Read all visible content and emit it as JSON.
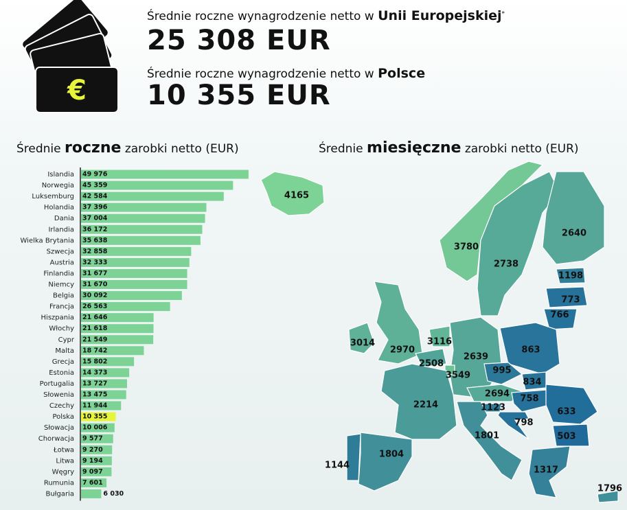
{
  "header": {
    "icon_symbol": "€",
    "eu_text": "Średnie roczne wynagrodzenie netto w",
    "eu_name": "Unii Europejskiej",
    "eu_note": "*",
    "eu_value": "25 308 EUR",
    "pl_text": "Średnie roczne wynagrodzenie netto w",
    "pl_name": "Polsce",
    "pl_value": "10 355 EUR"
  },
  "chart_data": {
    "type": "bar",
    "orientation": "horizontal",
    "title": [
      "Średnie",
      "roczne",
      "zarobki netto (EUR)"
    ],
    "categories": [
      "Islandia",
      "Norwegia",
      "Luksemburg",
      "Holandia",
      "Dania",
      "Irlandia",
      "Wielka Brytania",
      "Szwecja",
      "Austria",
      "Finlandia",
      "Niemcy",
      "Belgia",
      "Francja",
      "Hiszpania",
      "Włochy",
      "Cypr",
      "Malta",
      "Grecja",
      "Estonia",
      "Portugalia",
      "Słowenia",
      "Czechy",
      "Polska",
      "Słowacja",
      "Chorwacja",
      "Łotwa",
      "Litwa",
      "Węgry",
      "Rumunia",
      "Bułgaria"
    ],
    "values": [
      49976,
      45359,
      42584,
      37396,
      37004,
      36172,
      35638,
      32858,
      32333,
      31677,
      31670,
      30092,
      26563,
      21646,
      21618,
      21549,
      18742,
      15802,
      14373,
      13727,
      13475,
      11944,
      10355,
      10006,
      9577,
      9270,
      9194,
      9097,
      7601,
      6030
    ],
    "value_labels": [
      "49 976",
      "45 359",
      "42 584",
      "37 396",
      "37 004",
      "36 172",
      "35 638",
      "32 858",
      "32 333",
      "31 677",
      "31 670",
      "30 092",
      "26 563",
      "21 646",
      "21 618",
      "21 549",
      "18 742",
      "15 802",
      "14 373",
      "13 727",
      "13 475",
      "11 944",
      "10 355",
      "10 006",
      "9 577",
      "9 270",
      "9 194",
      "9 097",
      "7 601",
      "6 030"
    ],
    "colors": [
      "#7dd396",
      "#7dd396",
      "#7dd396",
      "#7dd396",
      "#7dd396",
      "#7dd396",
      "#7dd396",
      "#7dd396",
      "#7dd396",
      "#7dd396",
      "#7dd396",
      "#7dd396",
      "#7dd396",
      "#7dd396",
      "#7dd396",
      "#7dd396",
      "#7dd396",
      "#7dd396",
      "#7dd396",
      "#7dd396",
      "#7dd396",
      "#7dd396",
      "#e6f53a",
      "#7dd396",
      "#7dd396",
      "#7dd396",
      "#7dd396",
      "#7dd396",
      "#7dd396",
      "#7dd396"
    ],
    "xlim": [
      0,
      50000
    ]
  },
  "map": {
    "title": [
      "Średnie",
      "miesięczne",
      "zarobki netto (EUR)"
    ],
    "values": [
      4165,
      3780,
      2738,
      2640,
      1198,
      773,
      766,
      3014,
      2970,
      3116,
      2508,
      2639,
      3549,
      863,
      995,
      834,
      2694,
      758,
      1123,
      798,
      633,
      503,
      2214,
      1801,
      1804,
      1144,
      1317,
      1796
    ],
    "low_color": "#1f6a9a",
    "high_color": "#7dd396"
  }
}
